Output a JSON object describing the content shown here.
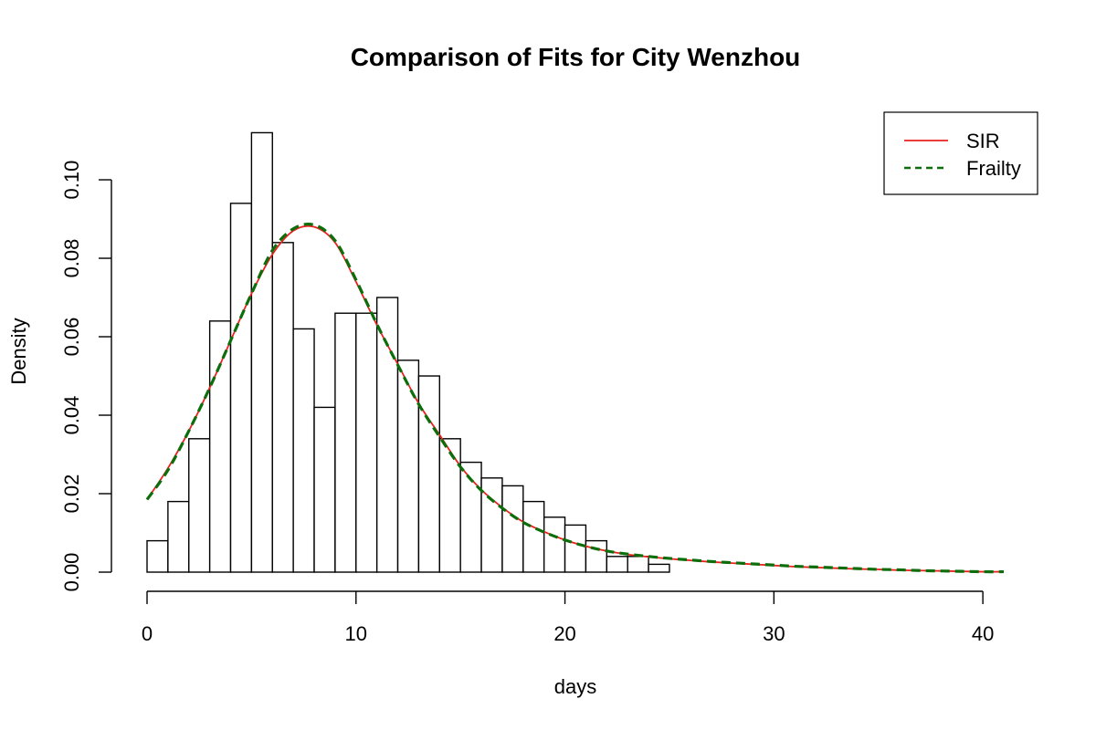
{
  "chart_data": {
    "type": "bar",
    "title": "Comparison of Fits for City Wenzhou",
    "xlabel": "days",
    "ylabel": "Density",
    "xlim": [
      0,
      41
    ],
    "ylim": [
      0,
      0.1128
    ],
    "x_ticks": [
      0,
      10,
      20,
      30,
      40
    ],
    "x_tick_labels": [
      "0",
      "10",
      "20",
      "30",
      "40"
    ],
    "y_ticks": [
      0,
      0.02,
      0.04,
      0.06,
      0.08,
      0.1
    ],
    "y_tick_labels": [
      "0.00",
      "0.02",
      "0.04",
      "0.06",
      "0.08",
      "0.10"
    ],
    "grid": false,
    "histogram": {
      "bin_width": 1,
      "bin_starts": [
        0,
        1,
        2,
        3,
        4,
        5,
        6,
        7,
        8,
        9,
        10,
        11,
        12,
        13,
        14,
        15,
        16,
        17,
        18,
        19,
        20,
        21,
        22,
        23,
        24
      ],
      "values": [
        0.008,
        0.018,
        0.034,
        0.064,
        0.094,
        0.112,
        0.084,
        0.062,
        0.042,
        0.066,
        0.066,
        0.07,
        0.054,
        0.05,
        0.034,
        0.028,
        0.024,
        0.022,
        0.018,
        0.014,
        0.012,
        0.008,
        0.004,
        0.004,
        0.002
      ],
      "color": "#000000",
      "fill": "#ffffff"
    },
    "series": [
      {
        "name": "SIR",
        "color": "#e8231f",
        "style": "solid",
        "x": [
          0,
          1,
          2,
          3,
          4,
          5,
          6,
          7,
          8,
          9,
          10,
          11,
          12,
          13,
          14,
          15,
          16,
          17,
          18,
          19,
          20,
          21,
          22,
          23,
          24,
          25,
          26,
          27,
          28,
          29,
          30,
          31,
          32,
          33,
          34,
          35,
          36,
          37,
          38,
          39,
          40,
          41
        ],
        "values": [
          0.0185,
          0.0265,
          0.036,
          0.047,
          0.059,
          0.071,
          0.081,
          0.087,
          0.088,
          0.084,
          0.074,
          0.063,
          0.053,
          0.043,
          0.035,
          0.027,
          0.021,
          0.0165,
          0.0128,
          0.0103,
          0.0082,
          0.0066,
          0.0054,
          0.0045,
          0.0039,
          0.0034,
          0.003,
          0.0026,
          0.0023,
          0.002,
          0.0017,
          0.0014,
          0.0012,
          0.001,
          0.0008,
          0.0007,
          0.0005,
          0.0004,
          0.0003,
          0.0002,
          0.0001,
          0.0001
        ]
      },
      {
        "name": "Frailty",
        "color": "#0b6e0b",
        "style": "dashed",
        "x": [
          0,
          1,
          2,
          3,
          4,
          5,
          6,
          7,
          8,
          9,
          10,
          11,
          12,
          13,
          14,
          15,
          16,
          17,
          18,
          19,
          20,
          21,
          22,
          23,
          24,
          25,
          26,
          27,
          28,
          29,
          30,
          31,
          32,
          33,
          34,
          35,
          36,
          37,
          38,
          39,
          40,
          41
        ],
        "values": [
          0.0185,
          0.026,
          0.036,
          0.047,
          0.059,
          0.071,
          0.082,
          0.0875,
          0.0885,
          0.0845,
          0.0745,
          0.0632,
          0.0528,
          0.0428,
          0.0345,
          0.0268,
          0.0208,
          0.0163,
          0.0127,
          0.0102,
          0.0082,
          0.0066,
          0.0054,
          0.0046,
          0.004,
          0.0035,
          0.0031,
          0.0027,
          0.0024,
          0.0021,
          0.0018,
          0.0015,
          0.0013,
          0.0011,
          0.0009,
          0.0007,
          0.0006,
          0.0004,
          0.0003,
          0.0002,
          0.0001,
          0.0001
        ]
      }
    ],
    "legend": {
      "position": "top-right",
      "entries": [
        {
          "label": "SIR",
          "color": "#e8231f",
          "style": "solid"
        },
        {
          "label": "Frailty",
          "color": "#0b6e0b",
          "style": "dashed"
        }
      ]
    }
  }
}
